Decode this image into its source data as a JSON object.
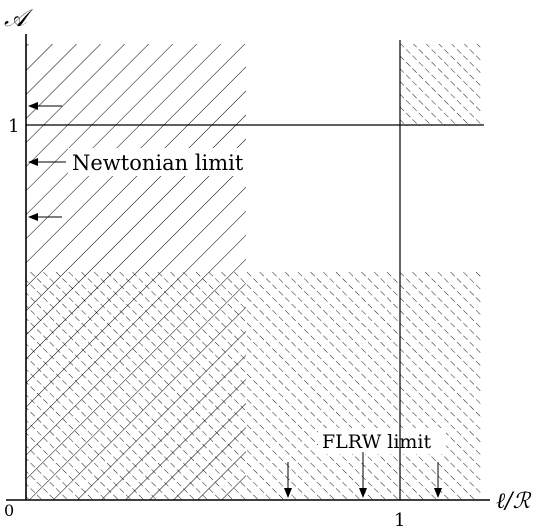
{
  "axes": {
    "y_symbol": "𝒜",
    "x_symbol": "ℓ/ℛ",
    "origin": "0",
    "x_tick": "1",
    "y_tick": "1"
  },
  "annotations": {
    "newtonian": "Newtonian limit",
    "flrw": "FLRW limit"
  },
  "colors": {
    "ink": "#000000",
    "background": "#ffffff"
  }
}
